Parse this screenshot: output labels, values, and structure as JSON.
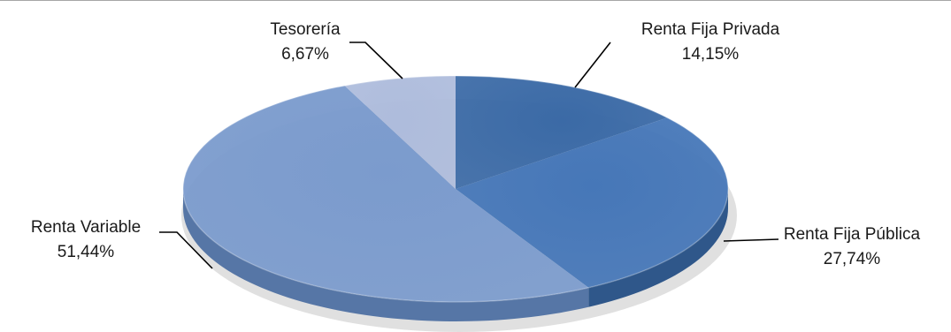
{
  "chart_data": {
    "type": "pie",
    "three_d": true,
    "title": "",
    "legend": "none",
    "slices": [
      {
        "label": "Renta Fija Privada",
        "value": 14.15,
        "value_label": "14,15%",
        "color": "#3b6aa6",
        "side_color": "#27497a"
      },
      {
        "label": "Renta Fija Pública",
        "value": 27.74,
        "value_label": "27,74%",
        "color": "#4677b8",
        "side_color": "#2f578a"
      },
      {
        "label": "Renta Variable",
        "value": 51.44,
        "value_label": "51,44%",
        "color": "#7b9bcd",
        "side_color": "#5676a6"
      },
      {
        "label": "Tesorería",
        "value": 6.67,
        "value_label": "6,67%",
        "color": "#aebcdc",
        "side_color": "#8a9bbf"
      }
    ]
  }
}
